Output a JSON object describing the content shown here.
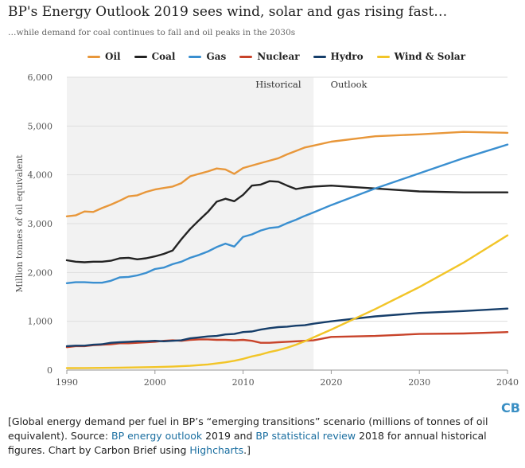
{
  "header": {
    "title": "BP's Energy Outlook 2019 sees wind, solar and gas rising fast…",
    "subtitle": "…while demand for coal continues to fall and oil peaks in the 2030s"
  },
  "chart_data": {
    "type": "line",
    "ylabel": "Million tonnes of oil equivalent",
    "xlabel": "",
    "xlim": [
      1990,
      2040
    ],
    "ylim": [
      0,
      6000
    ],
    "x_ticks": [
      1990,
      2000,
      2010,
      2020,
      2030,
      2040
    ],
    "y_ticks": [
      0,
      1000,
      2000,
      3000,
      4000,
      5000,
      6000
    ],
    "y_tick_labels": [
      "0",
      "1,000",
      "2,000",
      "3,000",
      "4,000",
      "5,000",
      "6,000"
    ],
    "grid": true,
    "legend_position": "top",
    "shaded_region": {
      "from": 1990,
      "to": 2018,
      "color": "#f2f2f2"
    },
    "annotations": [
      {
        "text": "Historical",
        "x": 2014,
        "y": 5850
      },
      {
        "text": "Outlook",
        "x": 2022,
        "y": 5850
      }
    ],
    "series": [
      {
        "name": "Oil",
        "color": "#e8973a",
        "points": [
          [
            1990,
            3150
          ],
          [
            1991,
            3170
          ],
          [
            1992,
            3250
          ],
          [
            1993,
            3240
          ],
          [
            1994,
            3320
          ],
          [
            1995,
            3390
          ],
          [
            1996,
            3470
          ],
          [
            1997,
            3560
          ],
          [
            1998,
            3580
          ],
          [
            1999,
            3650
          ],
          [
            2000,
            3700
          ],
          [
            2001,
            3730
          ],
          [
            2002,
            3760
          ],
          [
            2003,
            3830
          ],
          [
            2004,
            3970
          ],
          [
            2005,
            4020
          ],
          [
            2006,
            4070
          ],
          [
            2007,
            4130
          ],
          [
            2008,
            4110
          ],
          [
            2009,
            4020
          ],
          [
            2010,
            4140
          ],
          [
            2011,
            4190
          ],
          [
            2012,
            4240
          ],
          [
            2013,
            4290
          ],
          [
            2014,
            4340
          ],
          [
            2015,
            4420
          ],
          [
            2016,
            4490
          ],
          [
            2017,
            4560
          ],
          [
            2018,
            4600
          ],
          [
            2020,
            4680
          ],
          [
            2025,
            4790
          ],
          [
            2030,
            4830
          ],
          [
            2035,
            4880
          ],
          [
            2040,
            4860
          ]
        ]
      },
      {
        "name": "Coal",
        "color": "#222222",
        "points": [
          [
            1990,
            2250
          ],
          [
            1991,
            2220
          ],
          [
            1992,
            2210
          ],
          [
            1993,
            2220
          ],
          [
            1994,
            2220
          ],
          [
            1995,
            2240
          ],
          [
            1996,
            2290
          ],
          [
            1997,
            2300
          ],
          [
            1998,
            2270
          ],
          [
            1999,
            2290
          ],
          [
            2000,
            2330
          ],
          [
            2001,
            2380
          ],
          [
            2002,
            2450
          ],
          [
            2003,
            2680
          ],
          [
            2004,
            2890
          ],
          [
            2005,
            3070
          ],
          [
            2006,
            3240
          ],
          [
            2007,
            3450
          ],
          [
            2008,
            3510
          ],
          [
            2009,
            3460
          ],
          [
            2010,
            3590
          ],
          [
            2011,
            3780
          ],
          [
            2012,
            3800
          ],
          [
            2013,
            3870
          ],
          [
            2014,
            3860
          ],
          [
            2015,
            3780
          ],
          [
            2016,
            3710
          ],
          [
            2017,
            3740
          ],
          [
            2018,
            3760
          ],
          [
            2020,
            3780
          ],
          [
            2025,
            3720
          ],
          [
            2030,
            3660
          ],
          [
            2035,
            3640
          ],
          [
            2040,
            3640
          ]
        ]
      },
      {
        "name": "Gas",
        "color": "#3a8fd0",
        "points": [
          [
            1990,
            1780
          ],
          [
            1991,
            1800
          ],
          [
            1992,
            1800
          ],
          [
            1993,
            1790
          ],
          [
            1994,
            1790
          ],
          [
            1995,
            1830
          ],
          [
            1996,
            1900
          ],
          [
            1997,
            1910
          ],
          [
            1998,
            1940
          ],
          [
            1999,
            1990
          ],
          [
            2000,
            2070
          ],
          [
            2001,
            2100
          ],
          [
            2002,
            2170
          ],
          [
            2003,
            2220
          ],
          [
            2004,
            2300
          ],
          [
            2005,
            2360
          ],
          [
            2006,
            2430
          ],
          [
            2007,
            2520
          ],
          [
            2008,
            2590
          ],
          [
            2009,
            2530
          ],
          [
            2010,
            2730
          ],
          [
            2011,
            2780
          ],
          [
            2012,
            2860
          ],
          [
            2013,
            2910
          ],
          [
            2014,
            2930
          ],
          [
            2015,
            3010
          ],
          [
            2016,
            3080
          ],
          [
            2017,
            3160
          ],
          [
            2018,
            3230
          ],
          [
            2020,
            3380
          ],
          [
            2025,
            3720
          ],
          [
            2030,
            4030
          ],
          [
            2035,
            4340
          ],
          [
            2040,
            4620
          ]
        ]
      },
      {
        "name": "Nuclear",
        "color": "#c8432a",
        "points": [
          [
            1990,
            470
          ],
          [
            1991,
            490
          ],
          [
            1992,
            490
          ],
          [
            1993,
            510
          ],
          [
            1994,
            520
          ],
          [
            1995,
            530
          ],
          [
            1996,
            550
          ],
          [
            1997,
            550
          ],
          [
            1998,
            560
          ],
          [
            1999,
            570
          ],
          [
            2000,
            580
          ],
          [
            2001,
            600
          ],
          [
            2002,
            610
          ],
          [
            2003,
            600
          ],
          [
            2004,
            620
          ],
          [
            2005,
            630
          ],
          [
            2006,
            630
          ],
          [
            2007,
            620
          ],
          [
            2008,
            620
          ],
          [
            2009,
            610
          ],
          [
            2010,
            620
          ],
          [
            2011,
            600
          ],
          [
            2012,
            560
          ],
          [
            2013,
            560
          ],
          [
            2014,
            570
          ],
          [
            2015,
            580
          ],
          [
            2016,
            590
          ],
          [
            2017,
            600
          ],
          [
            2018,
            610
          ],
          [
            2020,
            680
          ],
          [
            2025,
            700
          ],
          [
            2030,
            740
          ],
          [
            2035,
            750
          ],
          [
            2040,
            780
          ]
        ]
      },
      {
        "name": "Hydro",
        "color": "#163e6a",
        "points": [
          [
            1990,
            490
          ],
          [
            1991,
            500
          ],
          [
            1992,
            500
          ],
          [
            1993,
            520
          ],
          [
            1994,
            530
          ],
          [
            1995,
            560
          ],
          [
            1996,
            570
          ],
          [
            1997,
            580
          ],
          [
            1998,
            590
          ],
          [
            1999,
            590
          ],
          [
            2000,
            600
          ],
          [
            2001,
            590
          ],
          [
            2002,
            600
          ],
          [
            2003,
            610
          ],
          [
            2004,
            650
          ],
          [
            2005,
            670
          ],
          [
            2006,
            690
          ],
          [
            2007,
            700
          ],
          [
            2008,
            730
          ],
          [
            2009,
            740
          ],
          [
            2010,
            780
          ],
          [
            2011,
            790
          ],
          [
            2012,
            830
          ],
          [
            2013,
            860
          ],
          [
            2014,
            880
          ],
          [
            2015,
            890
          ],
          [
            2016,
            910
          ],
          [
            2017,
            920
          ],
          [
            2018,
            950
          ],
          [
            2020,
            1000
          ],
          [
            2025,
            1100
          ],
          [
            2030,
            1170
          ],
          [
            2035,
            1210
          ],
          [
            2040,
            1260
          ]
        ]
      },
      {
        "name": "Wind & Solar",
        "color": "#f2c528",
        "points": [
          [
            1990,
            40
          ],
          [
            1992,
            42
          ],
          [
            1994,
            45
          ],
          [
            1996,
            50
          ],
          [
            1998,
            55
          ],
          [
            2000,
            62
          ],
          [
            2002,
            72
          ],
          [
            2004,
            88
          ],
          [
            2006,
            115
          ],
          [
            2008,
            160
          ],
          [
            2009,
            190
          ],
          [
            2010,
            230
          ],
          [
            2011,
            280
          ],
          [
            2012,
            320
          ],
          [
            2013,
            370
          ],
          [
            2014,
            410
          ],
          [
            2015,
            460
          ],
          [
            2016,
            520
          ],
          [
            2017,
            590
          ],
          [
            2018,
            670
          ],
          [
            2020,
            830
          ],
          [
            2025,
            1250
          ],
          [
            2030,
            1700
          ],
          [
            2035,
            2200
          ],
          [
            2040,
            2760
          ]
        ]
      }
    ]
  },
  "caption": {
    "part1": "[Global energy demand per fuel in BP’s “emerging transitions” scenario (millions of tonnes of oil equivalent). Source: ",
    "link1": "BP energy outlook",
    "part2": " 2019 and ",
    "link2": "BP statistical review",
    "part3": " 2018 for annual historical figures. Chart by Carbon Brief using ",
    "link3": "Highcharts",
    "part4": ".]"
  },
  "logo": {
    "text": "CB"
  }
}
